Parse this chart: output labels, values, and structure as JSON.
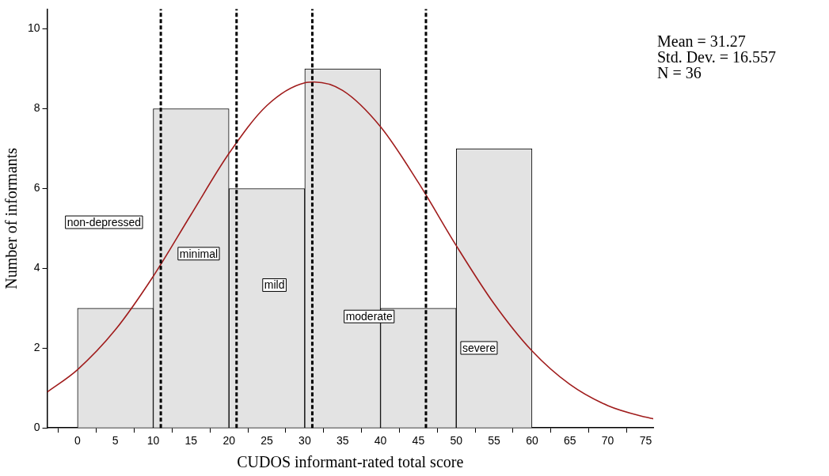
{
  "chart_data": {
    "type": "histogram",
    "xlabel": "CUDOS informant-rated total score",
    "ylabel": "Number of informants",
    "bins": [
      0,
      10,
      20,
      30,
      40,
      50,
      60
    ],
    "values": [
      3,
      8,
      6,
      9,
      3,
      7
    ],
    "color": "#e3e3e3",
    "series": [
      {
        "type": "line",
        "color": "#a01c1c",
        "x": [
          -4,
          0,
          5,
          10,
          15,
          20,
          25,
          30,
          31.27,
          35,
          40,
          45,
          50,
          55,
          60,
          65,
          70,
          75,
          76
        ],
        "values": [
          0.9,
          1.46,
          2.46,
          3.8,
          5.35,
          6.88,
          8.08,
          8.65,
          8.67,
          8.46,
          7.55,
          6.15,
          4.57,
          3.11,
          1.93,
          1.09,
          0.56,
          0.27,
          0.23
        ]
      }
    ],
    "xlim": [
      -4,
      76
    ],
    "xticks": [
      0,
      5,
      10,
      15,
      20,
      25,
      30,
      35,
      40,
      45,
      50,
      55,
      60,
      65,
      70,
      75
    ],
    "ylim": [
      0,
      10.5
    ],
    "yticks": [
      0,
      2,
      4,
      6,
      8,
      10
    ],
    "ref_lines": [
      {
        "axis": "x",
        "value": 11,
        "color": "#000000",
        "line_style": "dashed"
      },
      {
        "axis": "x",
        "value": 21,
        "color": "#000000",
        "line_style": "dashed"
      },
      {
        "axis": "x",
        "value": 31,
        "color": "#000000",
        "line_style": "dashed"
      },
      {
        "axis": "x",
        "value": 46,
        "color": "#000000",
        "line_style": "dashed"
      }
    ],
    "annotations": [
      "non-depressed",
      "minimal",
      "mild",
      "moderate",
      "severe",
      "Mean = 31.27",
      "Std. Dev. = 16.557",
      "N = 36"
    ],
    "grid": false,
    "legend": false
  }
}
